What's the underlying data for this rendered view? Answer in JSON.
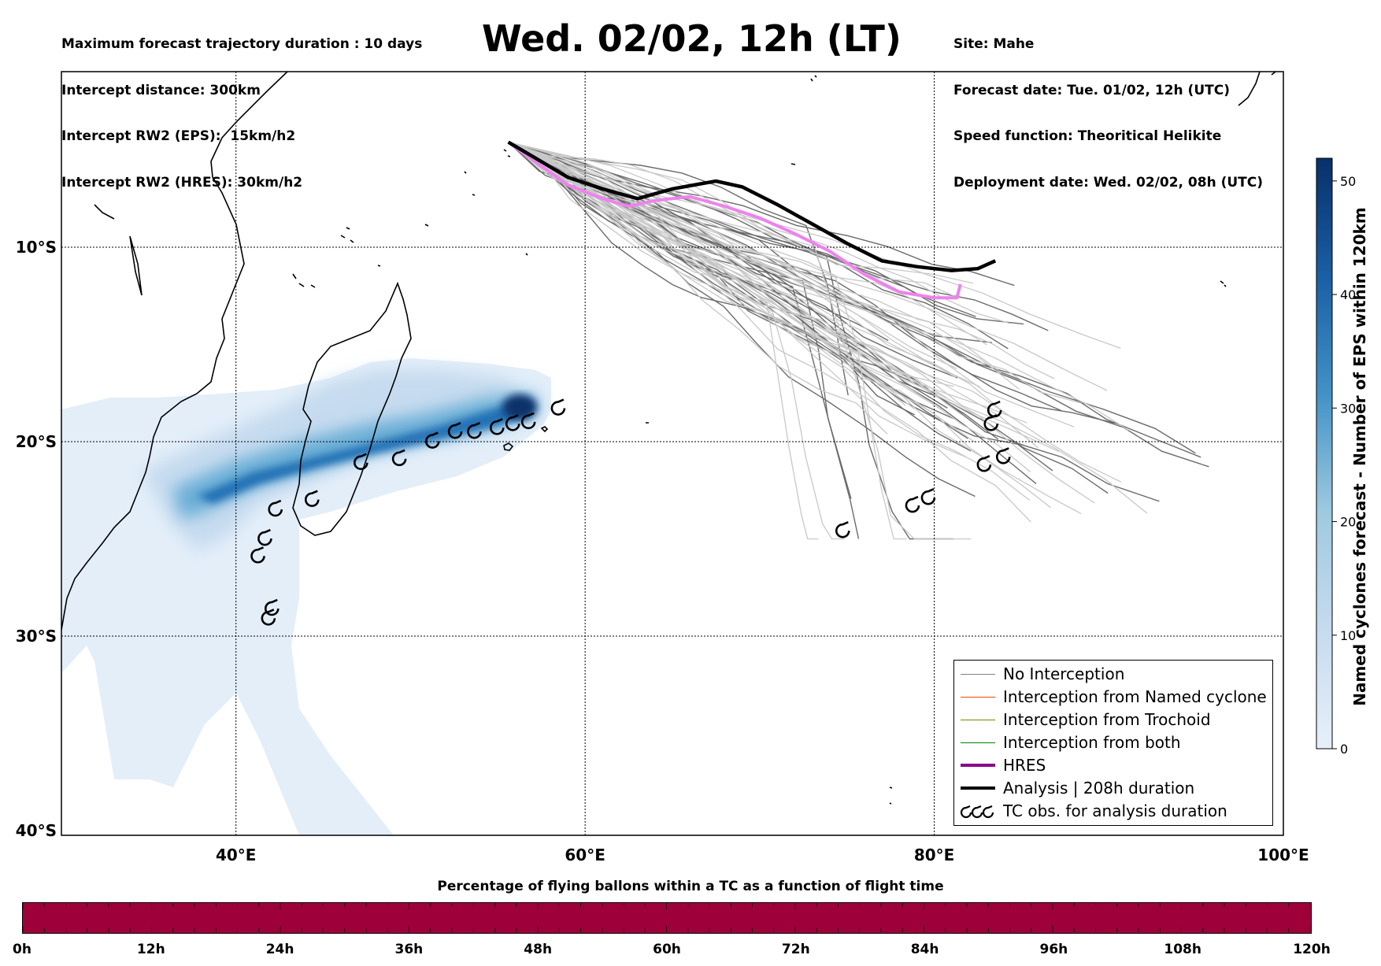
{
  "header_left": [
    "Maximum forecast trajectory duration : 10 days",
    "Intercept distance: 300km",
    "Intercept RW2 (EPS):  15km/h2",
    "Intercept RW2 (HRES): 30km/h2"
  ],
  "header_right": [
    "Site: Mahe",
    "Forecast date: Tue. 01/02, 12h (UTC)",
    "Speed function: Theoritical Helikite",
    "Deployment date: Wed. 02/02, 08h (UTC)"
  ],
  "title": "Wed. 02/02, 12h (LT)",
  "map": {
    "lat_labels": [
      "10°S",
      "20°S",
      "30°S",
      "40°S"
    ],
    "lon_labels": [
      "40°E",
      "60°E",
      "80°E",
      "100°E"
    ],
    "extent": {
      "lon": [
        30,
        100
      ],
      "lat": [
        -40,
        0.5
      ]
    },
    "grid": true
  },
  "colorbar": {
    "label": "Named cyclones forecast - Number of EPS within 120km",
    "ticks": [
      "0",
      "10",
      "20",
      "30",
      "40",
      "50"
    ],
    "max": 52,
    "colormap": [
      "#e3eef9",
      "#08306b"
    ]
  },
  "legend": {
    "items": [
      {
        "label": "No Interception",
        "color": "#808080"
      },
      {
        "label": "Interception from Named cyclone",
        "color": "#ff4500"
      },
      {
        "label": "Interception from Trochoid",
        "color": "#808000"
      },
      {
        "label": "Interception from both",
        "color": "#008000"
      },
      {
        "label": "HRES",
        "color": "#8b008b"
      },
      {
        "label": "Analysis | 208h duration",
        "color": "#000000"
      },
      {
        "label": "TC obs. for analysis duration",
        "color": "#000000",
        "icon": "cyclone-symbols"
      }
    ]
  },
  "tc_observations": [
    {
      "lon": 58.5,
      "lat": -18.2
    },
    {
      "lon": 56.8,
      "lat": -18.9
    },
    {
      "lon": 55.9,
      "lat": -19.0
    },
    {
      "lon": 55.0,
      "lat": -19.2
    },
    {
      "lon": 53.7,
      "lat": -19.4
    },
    {
      "lon": 52.6,
      "lat": -19.4
    },
    {
      "lon": 51.3,
      "lat": -19.9
    },
    {
      "lon": 49.4,
      "lat": -20.8
    },
    {
      "lon": 47.2,
      "lat": -21.0
    },
    {
      "lon": 44.4,
      "lat": -22.9
    },
    {
      "lon": 42.3,
      "lat": -23.4
    },
    {
      "lon": 41.7,
      "lat": -24.9
    },
    {
      "lon": 41.3,
      "lat": -25.8
    },
    {
      "lon": 42.1,
      "lat": -28.5
    },
    {
      "lon": 41.9,
      "lat": -29.0
    },
    {
      "lon": 74.8,
      "lat": -24.5
    },
    {
      "lon": 79.7,
      "lat": -22.8
    },
    {
      "lon": 78.8,
      "lat": -23.2
    },
    {
      "lon": 83.5,
      "lat": -18.3
    },
    {
      "lon": 83.3,
      "lat": -19.0
    },
    {
      "lon": 84.0,
      "lat": -20.7
    },
    {
      "lon": 82.9,
      "lat": -21.1
    }
  ],
  "hres_track": [
    [
      55.6,
      -4.6
    ],
    [
      57.0,
      -5.5
    ],
    [
      59.0,
      -6.8
    ],
    [
      61.0,
      -7.5
    ],
    [
      62.5,
      -7.9
    ],
    [
      64.0,
      -7.6
    ],
    [
      66.0,
      -7.4
    ],
    [
      68.0,
      -7.9
    ],
    [
      70.0,
      -8.5
    ],
    [
      72.0,
      -9.3
    ],
    [
      74.0,
      -10.2
    ],
    [
      76.0,
      -11.4
    ],
    [
      78.0,
      -12.3
    ],
    [
      80.0,
      -12.6
    ],
    [
      81.3,
      -12.6
    ],
    [
      81.5,
      -11.9
    ]
  ],
  "analysis_track": [
    [
      55.6,
      -4.6
    ],
    [
      57.5,
      -5.6
    ],
    [
      59.0,
      -6.4
    ],
    [
      61.0,
      -7.0
    ],
    [
      63.0,
      -7.5
    ],
    [
      65.0,
      -7.0
    ],
    [
      67.5,
      -6.6
    ],
    [
      69.0,
      -6.9
    ],
    [
      71.0,
      -7.8
    ],
    [
      73.0,
      -8.8
    ],
    [
      75.0,
      -9.8
    ],
    [
      77.0,
      -10.7
    ],
    [
      79.0,
      -11.0
    ],
    [
      81.0,
      -11.2
    ],
    [
      82.5,
      -11.1
    ],
    [
      83.5,
      -10.7
    ]
  ],
  "time_bar": {
    "title": "Percentage of flying ballons within a TC as a function of flight time",
    "ticks": [
      "0h",
      "12h",
      "24h",
      "36h",
      "48h",
      "60h",
      "72h",
      "84h",
      "96h",
      "108h",
      "120h"
    ],
    "color": "#9e003a"
  }
}
